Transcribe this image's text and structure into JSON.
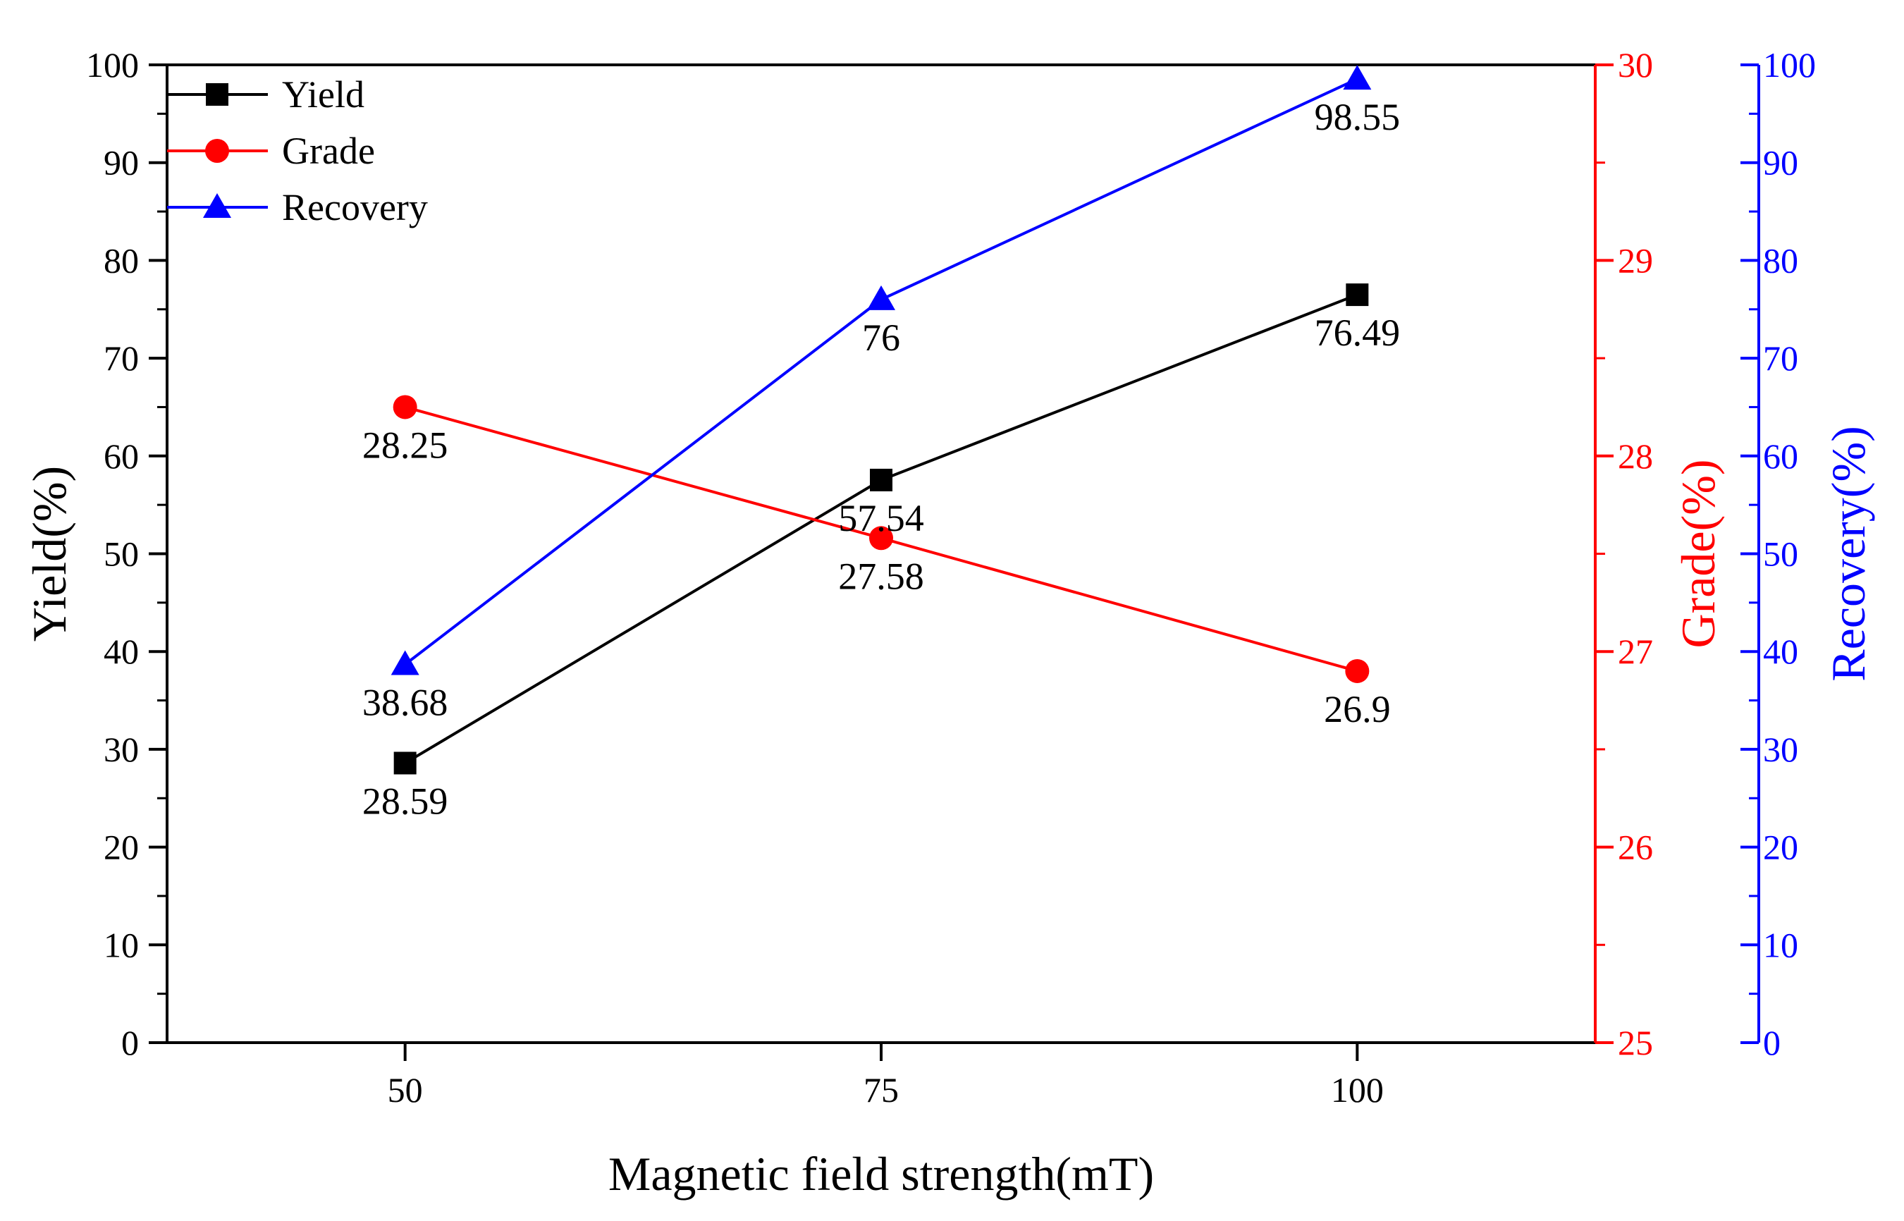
{
  "chart_data": {
    "type": "line",
    "x": [
      50,
      75,
      100
    ],
    "xlabel": "Magnetic field strength(mT)",
    "xlim": [
      37.5,
      112.5
    ],
    "xticks": [
      "50",
      "75",
      "100"
    ],
    "axes": {
      "left": {
        "label": "Yield(%)",
        "ylim": [
          0,
          100
        ],
        "ticks": [
          "0",
          "10",
          "20",
          "30",
          "40",
          "50",
          "60",
          "70",
          "80",
          "90",
          "100"
        ],
        "color": "#000000"
      },
      "right1": {
        "label": "Grade(%)",
        "ylim": [
          25,
          30
        ],
        "ticks": [
          "25",
          "26",
          "27",
          "28",
          "29",
          "30"
        ],
        "color": "#ff0000"
      },
      "right2": {
        "label": "Recovery(%)",
        "ylim": [
          0,
          100
        ],
        "ticks": [
          "0",
          "10",
          "20",
          "30",
          "40",
          "50",
          "60",
          "70",
          "80",
          "90",
          "100"
        ],
        "color": "#0000ff"
      }
    },
    "series": [
      {
        "name": "Yield",
        "axis": "left",
        "color": "#000000",
        "marker": "square",
        "values": [
          28.59,
          57.54,
          76.49
        ],
        "labels": [
          "28.59",
          "57.54",
          "76.49"
        ]
      },
      {
        "name": "Grade",
        "axis": "right1",
        "color": "#ff0000",
        "marker": "circle",
        "values": [
          28.25,
          27.58,
          26.9
        ],
        "labels": [
          "28.25",
          "27.58",
          "26.9"
        ]
      },
      {
        "name": "Recovery",
        "axis": "right2",
        "color": "#0000ff",
        "marker": "triangle",
        "values": [
          38.68,
          76,
          98.55
        ],
        "labels": [
          "38.68",
          "76",
          "98.55"
        ]
      }
    ],
    "legend": {
      "position": "top-left",
      "entries": [
        "Yield",
        "Grade",
        "Recovery"
      ]
    }
  }
}
